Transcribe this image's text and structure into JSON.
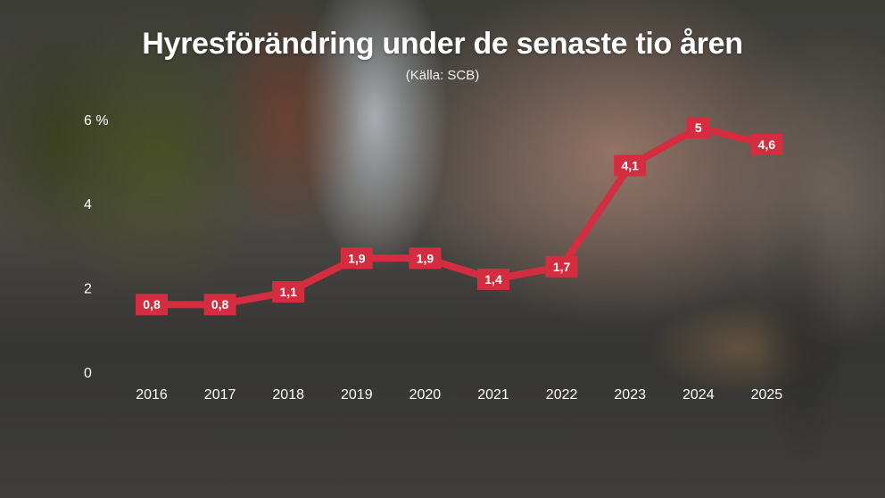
{
  "chart_data": {
    "type": "line",
    "title": "Hyresförändring under de senaste tio åren",
    "subtitle": "(Källa: SCB)",
    "x": [
      "2016",
      "2017",
      "2018",
      "2019",
      "2020",
      "2021",
      "2022",
      "2023",
      "2024",
      "2025"
    ],
    "series": [
      {
        "values": [
          0.8,
          0.8,
          1.1,
          1.9,
          1.9,
          1.4,
          1.7,
          4.1,
          5,
          4.6
        ],
        "labels": [
          "0,8",
          "0,8",
          "1,1",
          "1,9",
          "1,9",
          "1,4",
          "1,7",
          "4,1",
          "5",
          "4,6"
        ]
      }
    ],
    "ylim": [
      0,
      6
    ],
    "yticks": [
      0,
      2,
      4,
      6
    ],
    "ytick_labels": [
      "0",
      "2",
      "4",
      "6 %"
    ],
    "grid": false,
    "line_color": "#d32d3f"
  }
}
